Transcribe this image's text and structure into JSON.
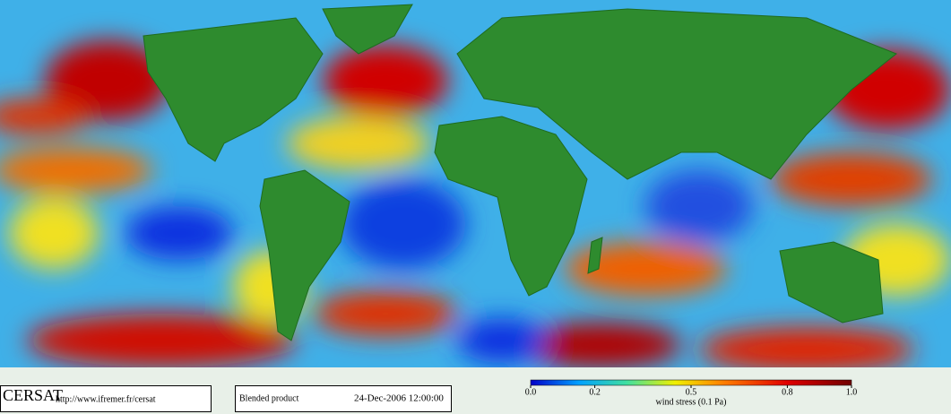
{
  "footer": {
    "logo": "CERSAT",
    "url": "http://www.ifremer.fr/cersat",
    "product": "Blended product",
    "date": "24-Dec-2006 12:00:00"
  },
  "colorbar": {
    "label": "wind stress (0.1 Pa)",
    "range": [
      0,
      1
    ],
    "ticks": [
      {
        "value": 0,
        "label": "0.0"
      },
      0.2,
      0.5,
      0.8,
      {
        "value": 1,
        "label": "1.0"
      }
    ]
  }
}
